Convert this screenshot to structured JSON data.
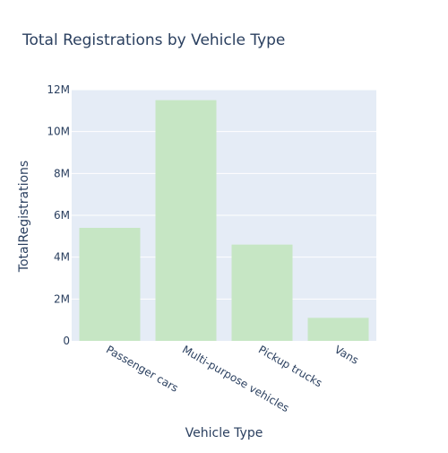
{
  "chart_data": {
    "type": "bar",
    "title": "Total Registrations by Vehicle Type",
    "xlabel": "Vehicle Type",
    "ylabel": "TotalRegistrations",
    "categories": [
      "Passenger cars",
      "Multi-purpose vehicles",
      "Pickup trucks",
      "Vans"
    ],
    "values": [
      5400000,
      11500000,
      4600000,
      1100000
    ],
    "ylim": [
      0,
      12000000
    ],
    "yticks": [
      0,
      2000000,
      4000000,
      6000000,
      8000000,
      10000000,
      12000000
    ],
    "ytick_labels": [
      "0",
      "2M",
      "4M",
      "6M",
      "8M",
      "10M",
      "12M"
    ],
    "grid": true,
    "legend": "none",
    "colors": {
      "bar": "#c6e6c4",
      "plot_bg": "#e5ecf6",
      "grid": "#ffffff",
      "text": "#2a3f5f"
    }
  }
}
